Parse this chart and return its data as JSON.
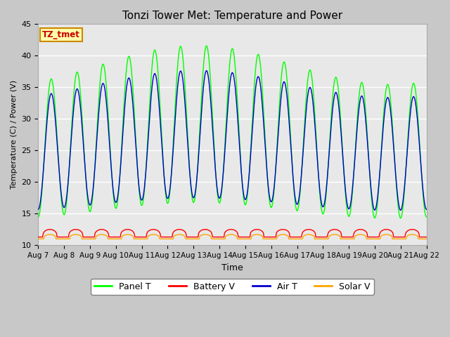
{
  "title": "Tonzi Tower Met: Temperature and Power",
  "xlabel": "Time",
  "ylabel": "Temperature (C) / Power (V)",
  "ylim": [
    10,
    45
  ],
  "xlim": [
    0,
    15
  ],
  "xtick_labels": [
    "Aug 7",
    "Aug 8",
    "Aug 9",
    "Aug 10",
    "Aug 11",
    "Aug 12",
    "Aug 13",
    "Aug 14",
    "Aug 15",
    "Aug 16",
    "Aug 17",
    "Aug 18",
    "Aug 19",
    "Aug 20",
    "Aug 21",
    "Aug 22"
  ],
  "xtick_positions": [
    0,
    1,
    2,
    3,
    4,
    5,
    6,
    7,
    8,
    9,
    10,
    11,
    12,
    13,
    14,
    15
  ],
  "ytick_labels": [
    "10",
    "15",
    "20",
    "25",
    "30",
    "35",
    "40",
    "45"
  ],
  "ytick_positions": [
    10,
    15,
    20,
    25,
    30,
    35,
    40,
    45
  ],
  "panel_t_color": "#00FF00",
  "battery_v_color": "#FF0000",
  "air_t_color": "#0000CD",
  "solar_v_color": "#FFA500",
  "fig_bg_color": "#C8C8C8",
  "plot_bg_color": "#E8E8E8",
  "label_box_text": "TZ_tmet",
  "label_box_bg": "#FFFFAA",
  "label_box_border": "#CC8800",
  "label_box_text_color": "#CC0000",
  "legend_labels": [
    "Panel T",
    "Battery V",
    "Air T",
    "Solar V"
  ],
  "n_points": 720,
  "days": 15
}
